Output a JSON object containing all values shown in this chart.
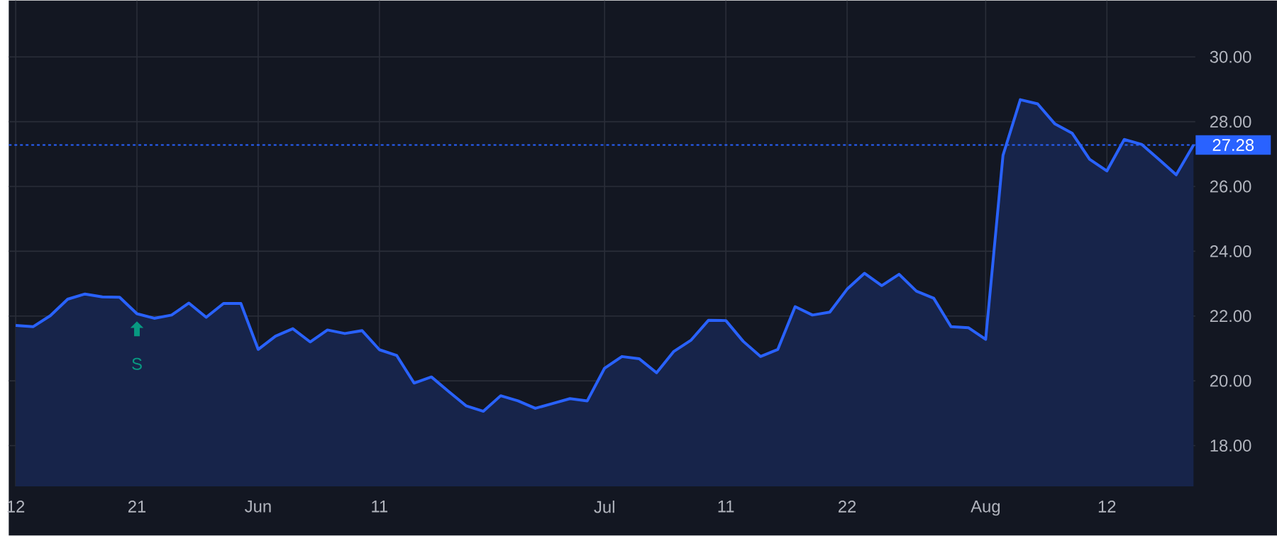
{
  "chart_data": {
    "type": "area",
    "categories": [
      "12",
      null,
      null,
      null,
      null,
      null,
      null,
      "21",
      null,
      null,
      null,
      null,
      null,
      null,
      "Jun",
      null,
      null,
      null,
      null,
      null,
      null,
      "11",
      null,
      null,
      null,
      null,
      null,
      null,
      null,
      null,
      null,
      null,
      null,
      null,
      "Jul",
      null,
      null,
      null,
      null,
      null,
      null,
      "11",
      null,
      null,
      null,
      null,
      null,
      null,
      "22",
      null,
      null,
      null,
      null,
      null,
      null,
      null,
      "Aug",
      null,
      null,
      null,
      null,
      null,
      null,
      "12",
      null,
      null,
      null,
      null,
      null
    ],
    "series": [
      {
        "color": "#2962ff",
        "values": [
          21.71,
          21.67,
          22.01,
          22.52,
          22.68,
          22.59,
          22.58,
          22.07,
          21.93,
          22.03,
          22.4,
          21.96,
          22.39,
          22.39,
          20.97,
          21.38,
          21.61,
          21.2,
          21.57,
          21.46,
          21.55,
          20.96,
          20.78,
          19.93,
          20.12,
          19.67,
          19.23,
          19.06,
          19.54,
          19.38,
          19.15,
          19.3,
          19.45,
          19.38,
          20.39,
          20.75,
          20.68,
          20.25,
          20.91,
          21.26,
          21.87,
          21.86,
          21.22,
          20.75,
          20.97,
          22.29,
          22.03,
          22.12,
          22.83,
          23.32,
          22.94,
          23.29,
          22.77,
          22.55,
          21.67,
          21.64,
          21.28,
          26.96,
          28.68,
          28.55,
          27.93,
          27.64,
          26.84,
          26.48,
          27.45,
          27.3,
          26.84,
          26.36,
          27.28
        ]
      }
    ],
    "ylim": [
      16.74,
      31.74
    ],
    "yticks": [
      {
        "value": 18,
        "label": "18.00"
      },
      {
        "value": 20,
        "label": "20.00"
      },
      {
        "value": 22,
        "label": "22.00"
      },
      {
        "value": 24,
        "label": "24.00"
      },
      {
        "value": 26,
        "label": "26.00"
      },
      {
        "value": 28,
        "label": "28.00"
      },
      {
        "value": 30,
        "label": "30.00"
      }
    ],
    "grid": true,
    "ref_lines": [
      {
        "axis": "y",
        "value": 27.28,
        "label": "27.28",
        "color": "#2962ff",
        "line_style": "dotted"
      }
    ],
    "annotations": [
      {
        "text": "S",
        "x": "21",
        "y": 22.07
      }
    ]
  }
}
